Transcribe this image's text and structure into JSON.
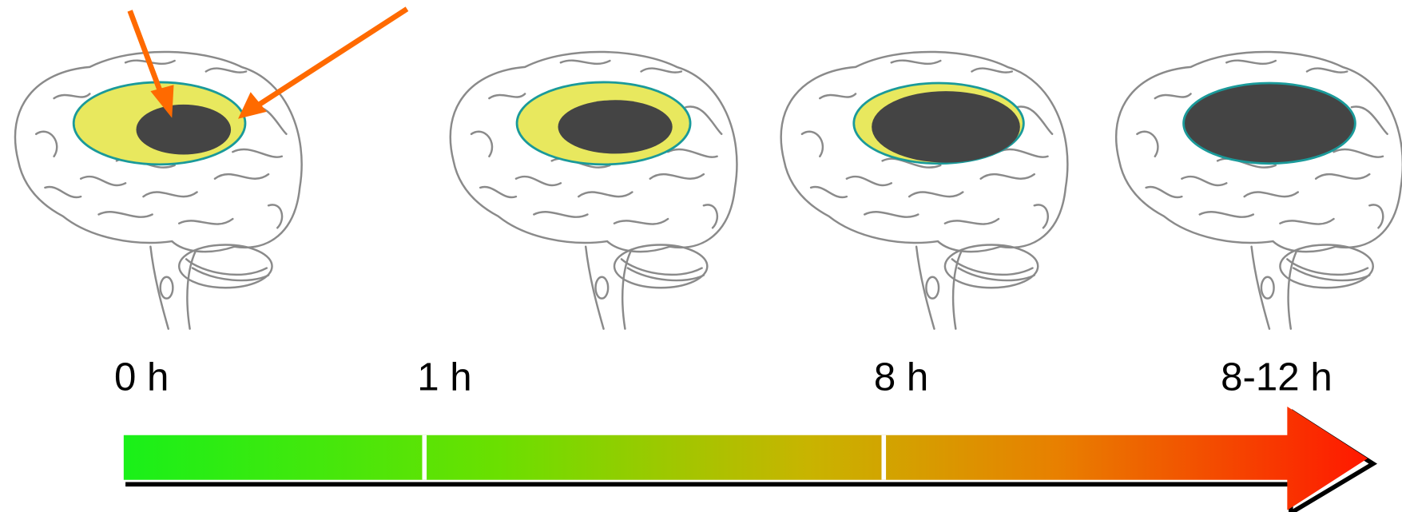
{
  "timeline": {
    "labels": [
      "0 h",
      "1 h",
      "8 h",
      "8-12 h"
    ]
  }
}
